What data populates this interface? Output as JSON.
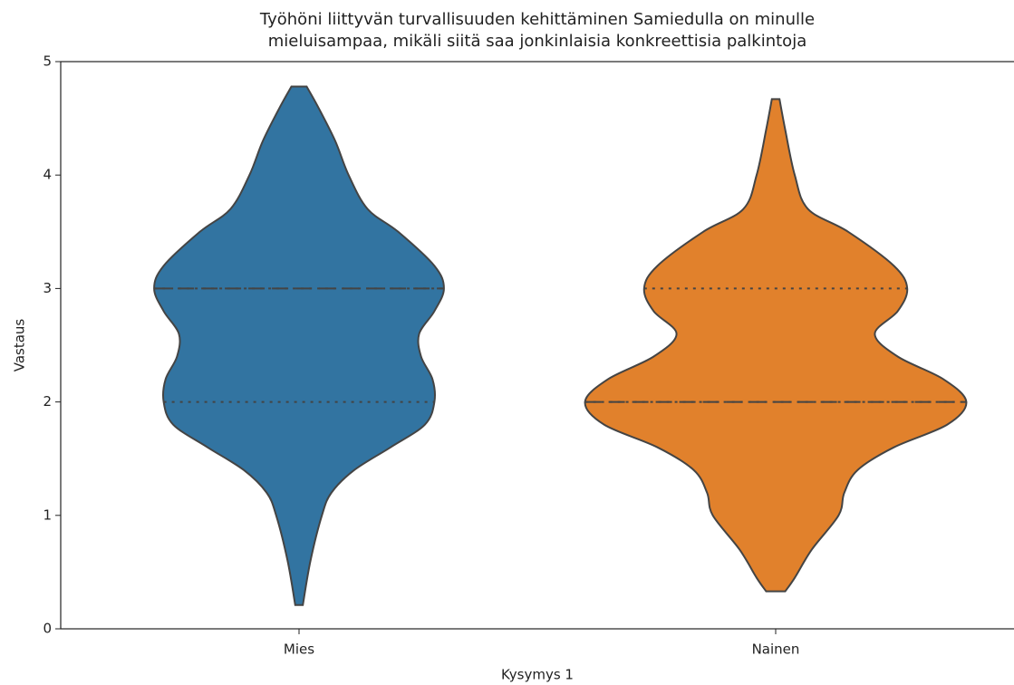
{
  "chart_data": {
    "type": "violin",
    "title": [
      "Työhöni liittyvän turvallisuuden kehittäminen Samiedulla on minulle",
      "mieluisampaa, mikäli siitä saa jonkinlaisia konkreettisia palkintoja"
    ],
    "x_label": "Kysymys 1",
    "y_label": "Vastaus",
    "categories": [
      "Mies",
      "Nainen"
    ],
    "ylim": [
      0,
      5
    ],
    "yticks": [
      0,
      1,
      2,
      3,
      4,
      5
    ],
    "grid": false,
    "series": [
      {
        "name": "Mies",
        "color": "#3274a1",
        "q1": 2,
        "median": 3,
        "q3": 3,
        "density": {
          "y": [
            4.78,
            4.6,
            4.3,
            4.0,
            3.7,
            3.5,
            3.2,
            3.0,
            2.8,
            2.6,
            2.4,
            2.2,
            2.0,
            1.8,
            1.6,
            1.4,
            1.2,
            1.0,
            0.6,
            0.21
          ],
          "width": [
            0.04,
            0.1,
            0.19,
            0.26,
            0.36,
            0.52,
            0.71,
            0.76,
            0.71,
            0.63,
            0.64,
            0.7,
            0.71,
            0.66,
            0.48,
            0.29,
            0.17,
            0.12,
            0.06,
            0.02
          ]
        }
      },
      {
        "name": "Nainen",
        "color": "#e1812c",
        "q1": 2,
        "median": 2,
        "q3": 3,
        "density": {
          "y": [
            4.67,
            4.4,
            4.0,
            3.7,
            3.5,
            3.2,
            3.0,
            2.8,
            2.6,
            2.4,
            2.2,
            2.0,
            1.8,
            1.6,
            1.4,
            1.2,
            1.0,
            0.7,
            0.45,
            0.33
          ],
          "width": [
            0.02,
            0.05,
            0.1,
            0.17,
            0.38,
            0.62,
            0.69,
            0.64,
            0.52,
            0.64,
            0.88,
            1,
            0.9,
            0.62,
            0.43,
            0.36,
            0.33,
            0.19,
            0.1,
            0.05
          ]
        }
      }
    ]
  }
}
